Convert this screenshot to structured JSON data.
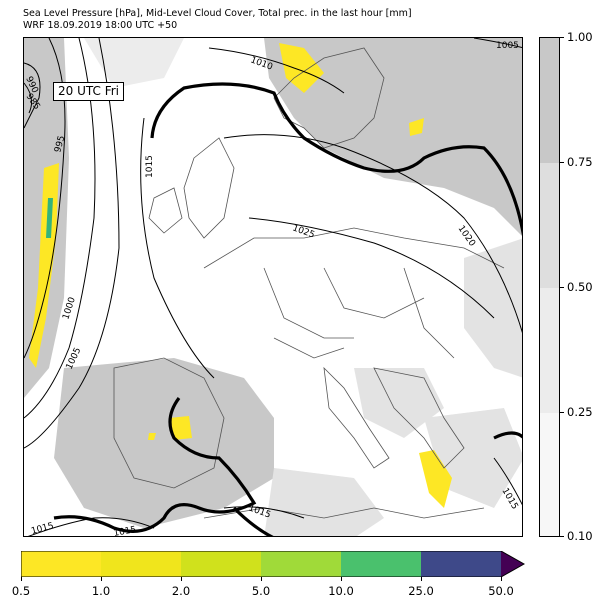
{
  "header": {
    "title_line1": "Sea Level Pressure [hPa], Mid-Level Cloud Cover, Total prec. in the last hour [mm]",
    "title_line2": "WRF 18.09.2019 18:00 UTC +50"
  },
  "map": {
    "time_label": "20 UTC Fri",
    "isobar_labels": [
      "990",
      "985",
      "995",
      "1000",
      "1005",
      "1010",
      "1015",
      "1025",
      "1020",
      "1005",
      "1015",
      "1015",
      "1015",
      "1015"
    ],
    "colors": {
      "cloud_light": "#e3e3e3",
      "cloud_dark": "#c8c8c8",
      "precip_yellow": "#fde725",
      "precip_yellow2": "#f0e51c",
      "precip_green": "#33b47c",
      "coast": "#555555",
      "isobar": "#000000"
    }
  },
  "cloud_cover_legend": {
    "ticks": [
      "1.00",
      "0.75",
      "0.50",
      "0.25",
      "0.10"
    ],
    "band_colors": [
      "#c8c8c8",
      "#dedede",
      "#ececec",
      "#f7f7f7"
    ]
  },
  "precip_legend": {
    "ticks": [
      "0.5",
      "1.0",
      "2.0",
      "5.0",
      "10.0",
      "25.0",
      "50.0"
    ],
    "band_colors": [
      "#fde725",
      "#f0e51c",
      "#d0e11c",
      "#a0da39",
      "#4ac16d",
      "#33b47c",
      "#3e4989"
    ],
    "extend_color": "#440154"
  }
}
